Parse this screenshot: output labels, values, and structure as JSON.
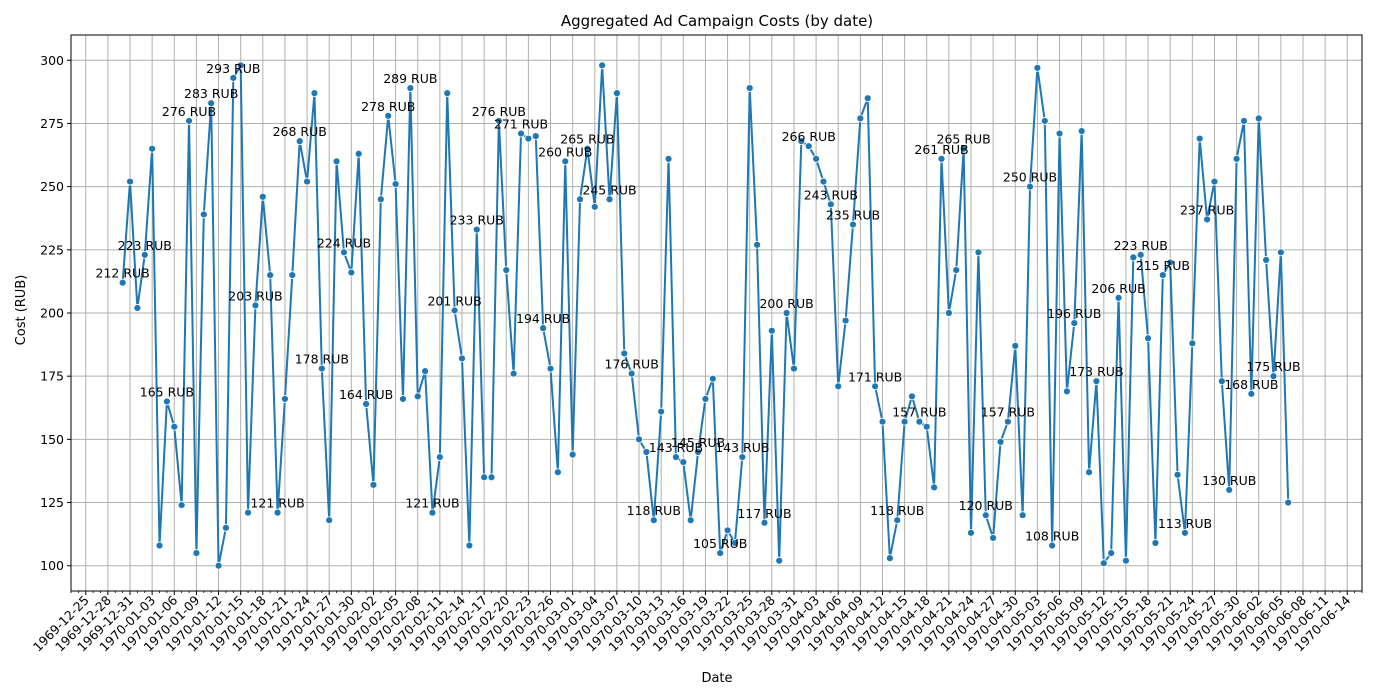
{
  "chart_data": {
    "type": "line",
    "title": "Aggregated Ad Campaign Costs (by date)",
    "xlabel": "Date",
    "ylabel": "Cost (RUB)",
    "xlim": [
      "1969-12-23",
      "1970-06-16"
    ],
    "ylim": [
      90,
      310
    ],
    "yticks": [
      100,
      125,
      150,
      175,
      200,
      225,
      250,
      275,
      300
    ],
    "xtick_labels": [
      "1969-12-25",
      "1969-12-28",
      "1969-12-31",
      "1970-01-03",
      "1970-01-06",
      "1970-01-09",
      "1970-01-12",
      "1970-01-15",
      "1970-01-18",
      "1970-01-21",
      "1970-01-24",
      "1970-01-27",
      "1970-01-30",
      "1970-02-02",
      "1970-02-05",
      "1970-02-08",
      "1970-02-11",
      "1970-02-14",
      "1970-02-17",
      "1970-02-20",
      "1970-02-23",
      "1970-02-26",
      "1970-03-01",
      "1970-03-04",
      "1970-03-07",
      "1970-03-10",
      "1970-03-13",
      "1970-03-16",
      "1970-03-19",
      "1970-03-22",
      "1970-03-25",
      "1970-03-28",
      "1970-03-31",
      "1970-04-03",
      "1970-04-06",
      "1970-04-09",
      "1970-04-12",
      "1970-04-15",
      "1970-04-18",
      "1970-04-21",
      "1970-04-24",
      "1970-04-27",
      "1970-04-30",
      "1970-05-03",
      "1970-05-06",
      "1970-05-09",
      "1970-05-12",
      "1970-05-15",
      "1970-05-18",
      "1970-05-21",
      "1970-05-24",
      "1970-05-27",
      "1970-05-30",
      "1970-06-02",
      "1970-06-05",
      "1970-06-08",
      "1970-06-11",
      "1970-06-14"
    ],
    "grid": true,
    "color": "#1f77b4",
    "series": [
      {
        "x_start": "1969-12-30",
        "values": [
          212,
          252,
          202,
          223,
          265,
          108,
          165,
          155,
          124,
          276,
          105,
          239,
          283,
          100,
          115,
          293,
          298,
          121,
          203,
          246,
          215,
          121,
          166,
          215,
          268,
          252,
          287,
          178,
          118,
          260,
          224,
          216,
          263,
          164,
          132,
          245,
          278,
          251,
          166,
          289,
          167,
          177,
          121,
          143,
          287,
          201,
          182,
          108,
          233,
          135,
          135,
          276,
          217,
          176,
          271,
          269,
          270,
          194,
          178,
          137,
          260,
          144,
          245,
          265,
          242,
          298,
          245,
          287,
          184,
          176,
          150,
          145,
          118,
          161,
          261,
          143,
          141,
          118,
          145,
          166,
          174,
          105,
          114,
          109,
          143,
          289,
          227,
          117,
          193,
          102,
          200,
          178,
          268,
          266,
          261,
          252,
          243,
          171,
          197,
          235,
          277,
          285,
          171,
          157,
          103,
          118,
          157,
          167,
          157,
          155,
          131,
          261,
          200,
          217,
          265,
          113,
          224,
          120,
          111,
          149,
          157,
          187,
          120,
          250,
          297,
          276,
          108,
          271,
          169,
          196,
          272,
          137,
          173,
          101,
          105,
          206,
          102,
          222,
          223,
          190,
          109,
          215,
          220,
          136,
          113,
          188,
          269,
          237,
          252,
          173,
          130,
          261,
          276,
          168,
          277,
          221,
          175,
          224,
          125
        ]
      }
    ],
    "annotations": [
      {
        "date_index": 0,
        "text": "212 RUB"
      },
      {
        "date_index": 3,
        "text": "223 RUB"
      },
      {
        "date_index": 6,
        "text": "165 RUB"
      },
      {
        "date_index": 9,
        "text": "276 RUB"
      },
      {
        "date_index": 12,
        "text": "283 RUB"
      },
      {
        "date_index": 15,
        "text": "293 RUB"
      },
      {
        "date_index": 18,
        "text": "203 RUB"
      },
      {
        "date_index": 21,
        "text": "121 RUB"
      },
      {
        "date_index": 24,
        "text": "268 RUB"
      },
      {
        "date_index": 27,
        "text": "178 RUB"
      },
      {
        "date_index": 30,
        "text": "224 RUB"
      },
      {
        "date_index": 33,
        "text": "164 RUB"
      },
      {
        "date_index": 36,
        "text": "278 RUB"
      },
      {
        "date_index": 39,
        "text": "289 RUB"
      },
      {
        "date_index": 42,
        "text": "121 RUB"
      },
      {
        "date_index": 45,
        "text": "201 RUB"
      },
      {
        "date_index": 48,
        "text": "233 RUB"
      },
      {
        "date_index": 51,
        "text": "276 RUB"
      },
      {
        "date_index": 54,
        "text": "271 RUB"
      },
      {
        "date_index": 57,
        "text": "194 RUB"
      },
      {
        "date_index": 60,
        "text": "260 RUB"
      },
      {
        "date_index": 63,
        "text": "265 RUB"
      },
      {
        "date_index": 66,
        "text": "245 RUB"
      },
      {
        "date_index": 69,
        "text": "176 RUB"
      },
      {
        "date_index": 72,
        "text": "118 RUB"
      },
      {
        "date_index": 75,
        "text": "143 RUB"
      },
      {
        "date_index": 78,
        "text": "145 RUB"
      },
      {
        "date_index": 81,
        "text": "105 RUB"
      },
      {
        "date_index": 84,
        "text": "143 RUB"
      },
      {
        "date_index": 87,
        "text": "117 RUB"
      },
      {
        "date_index": 90,
        "text": "200 RUB"
      },
      {
        "date_index": 93,
        "text": "266 RUB"
      },
      {
        "date_index": 96,
        "text": "243 RUB"
      },
      {
        "date_index": 99,
        "text": "235 RUB"
      },
      {
        "date_index": 102,
        "text": "171 RUB"
      },
      {
        "date_index": 105,
        "text": "118 RUB"
      },
      {
        "date_index": 108,
        "text": "157 RUB"
      },
      {
        "date_index": 111,
        "text": "261 RUB"
      },
      {
        "date_index": 114,
        "text": "265 RUB"
      },
      {
        "date_index": 117,
        "text": "120 RUB"
      },
      {
        "date_index": 120,
        "text": "157 RUB"
      },
      {
        "date_index": 123,
        "text": "250 RUB"
      },
      {
        "date_index": 126,
        "text": "108 RUB"
      },
      {
        "date_index": 129,
        "text": "196 RUB"
      },
      {
        "date_index": 132,
        "text": "173 RUB"
      },
      {
        "date_index": 135,
        "text": "206 RUB"
      },
      {
        "date_index": 138,
        "text": "223 RUB"
      },
      {
        "date_index": 141,
        "text": "215 RUB"
      },
      {
        "date_index": 144,
        "text": "113 RUB"
      },
      {
        "date_index": 147,
        "text": "237 RUB"
      },
      {
        "date_index": 150,
        "text": "130 RUB"
      },
      {
        "date_index": 153,
        "text": "168 RUB"
      },
      {
        "date_index": 156,
        "text": "175 RUB"
      }
    ]
  }
}
